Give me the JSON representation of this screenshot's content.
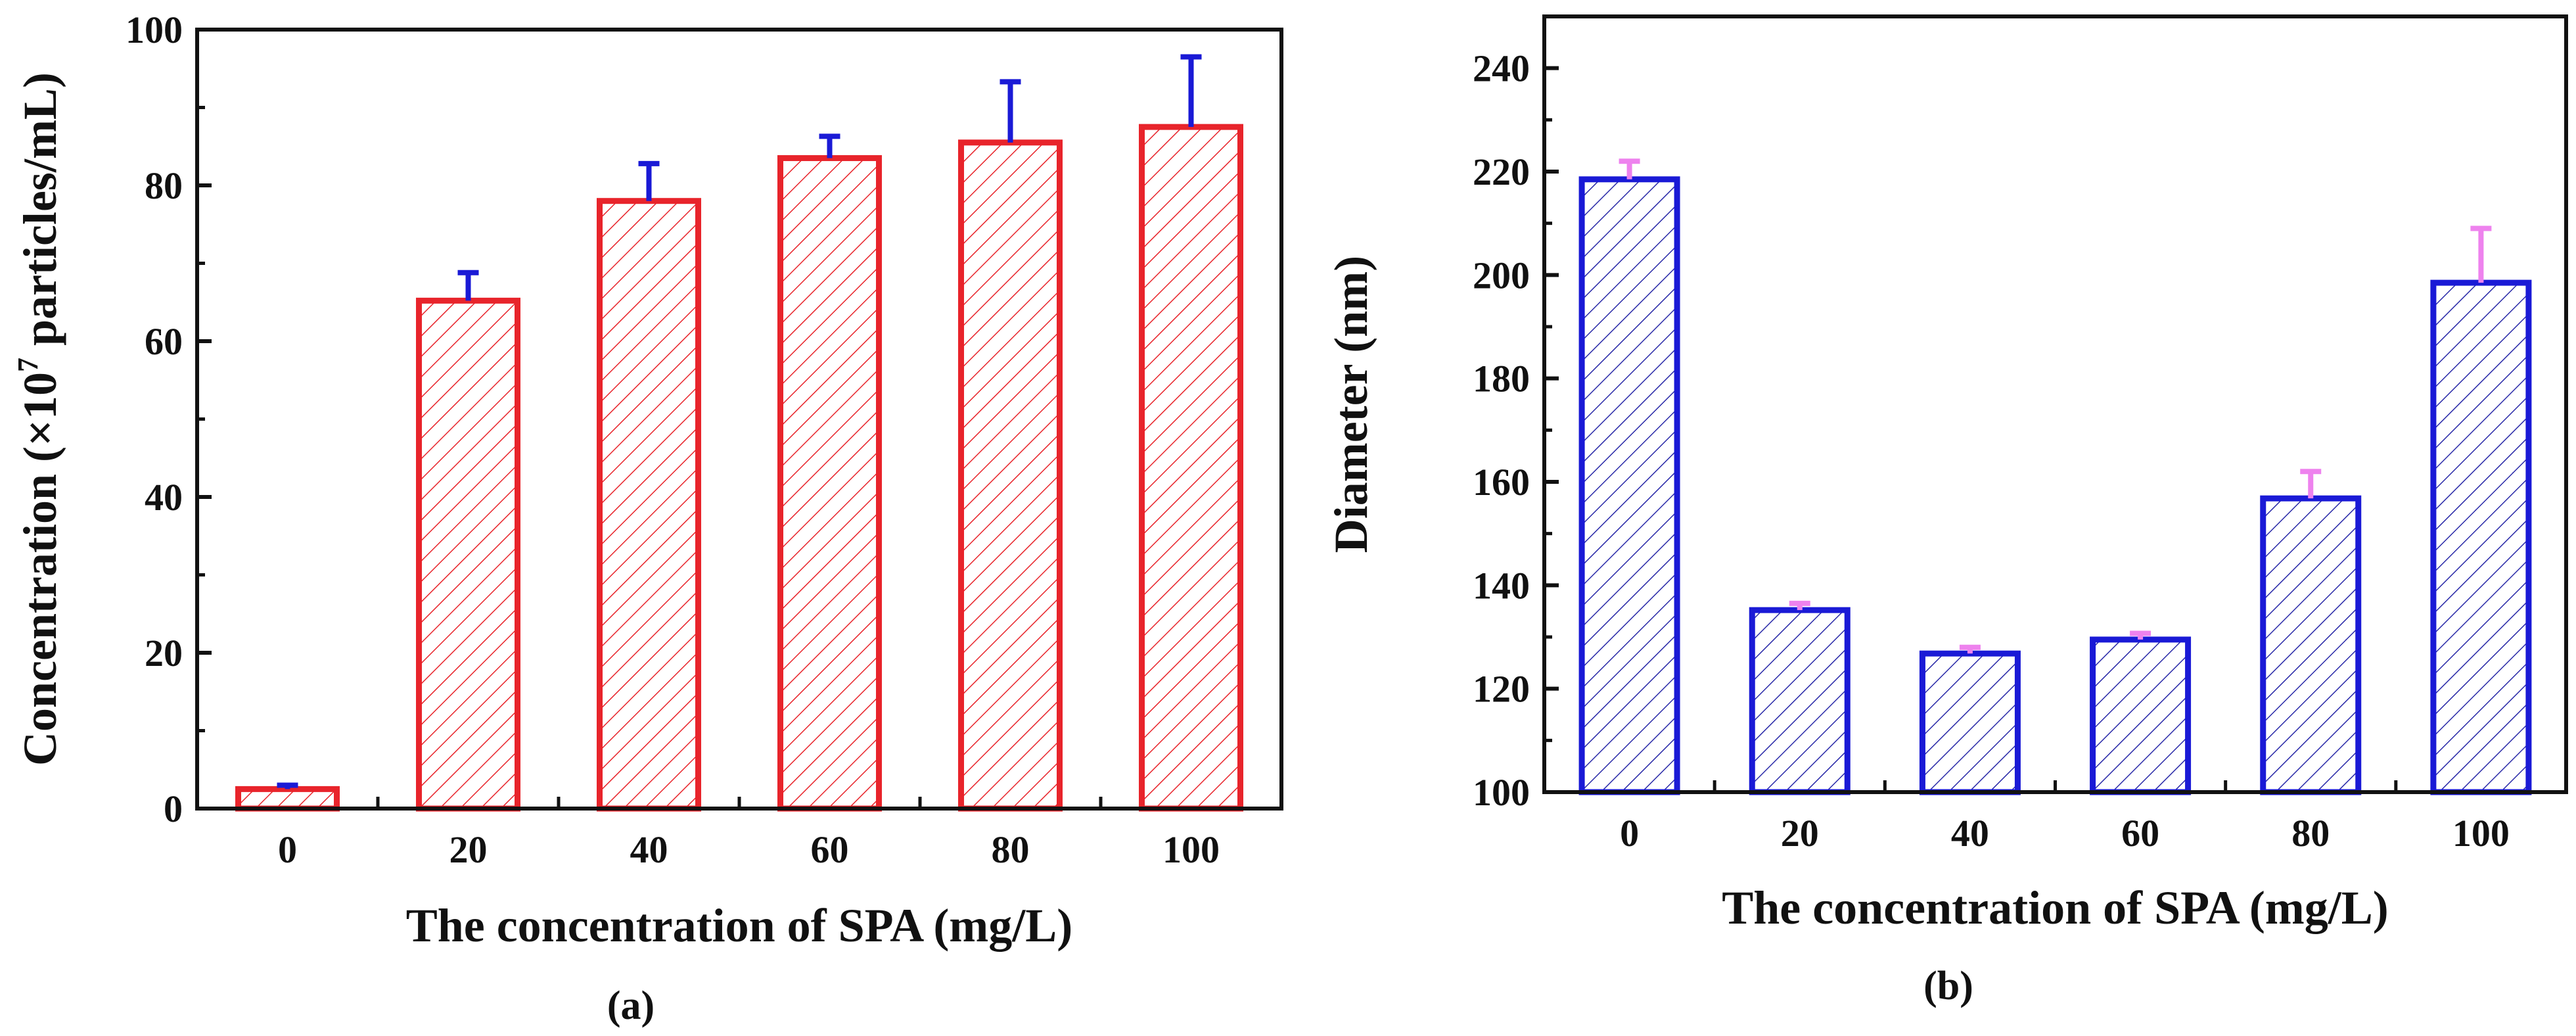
{
  "colors": {
    "panel_a_bar": "#e8242b",
    "panel_a_hatch": "#e8242b",
    "panel_a_error": "#1a1ad6",
    "panel_b_bar": "#1a1ad6",
    "panel_b_hatch": "#2a2aa8",
    "panel_b_error": "#ee82ee",
    "axis": "#111111"
  },
  "chart_data": [
    {
      "type": "bar",
      "panel_label": "(a)",
      "title": "",
      "xlabel": "The concentration of SPA (mg/L)",
      "ylabel_main": "Concentration (×10",
      "ylabel_sup": "7",
      "ylabel_rest": " particles/mL)",
      "categories": [
        "0",
        "20",
        "40",
        "60",
        "80",
        "100"
      ],
      "values": [
        2.5,
        65.2,
        78.0,
        83.5,
        85.5,
        87.5
      ],
      "errors": [
        0.5,
        3.6,
        4.8,
        2.8,
        7.8,
        9.0
      ],
      "ylim": [
        0,
        100
      ],
      "yticks": [
        0,
        20,
        40,
        60,
        80,
        100
      ],
      "ytick_labels": [
        "0",
        "20",
        "40",
        "60",
        "80",
        "100"
      ],
      "grid": false,
      "hatch": "diagonal"
    },
    {
      "type": "bar",
      "panel_label": "(b)",
      "title": "",
      "xlabel": "The concentration of SPA (mg/L)",
      "ylabel": "Diameter (nm)",
      "categories": [
        "0",
        "20",
        "40",
        "60",
        "80",
        "100"
      ],
      "values": [
        218.5,
        135.2,
        126.8,
        129.5,
        156.8,
        198.5
      ],
      "errors": [
        3.5,
        1.3,
        1.2,
        1.2,
        5.2,
        10.5
      ],
      "ylim": [
        100,
        250
      ],
      "yticks": [
        100,
        120,
        140,
        160,
        180,
        200,
        220,
        240
      ],
      "ytick_labels": [
        "100",
        "120",
        "140",
        "160",
        "180",
        "200",
        "220",
        "240"
      ],
      "grid": false,
      "hatch": "diagonal"
    }
  ]
}
